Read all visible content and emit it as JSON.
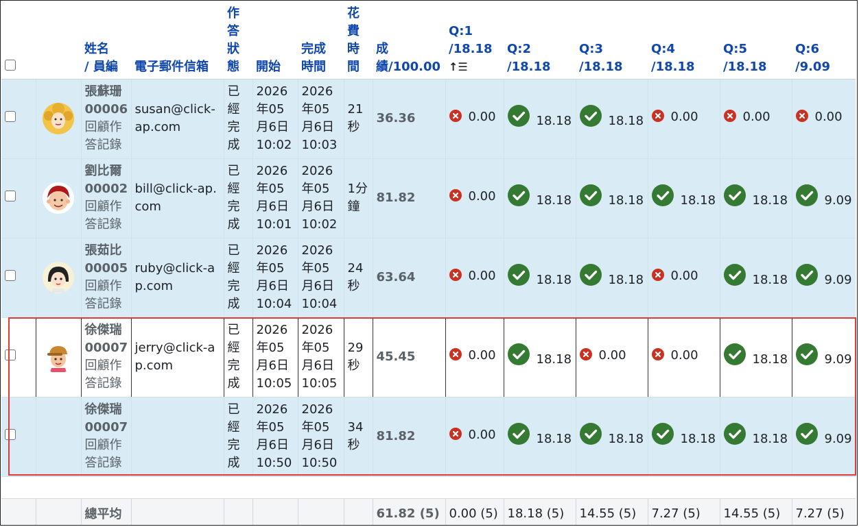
{
  "headers": {
    "name_line1": "姓名",
    "name_line2": "/ 員編",
    "email": "電子郵件信箱",
    "state": "作答狀態",
    "started": "開始",
    "completed": "完成時間",
    "duration": "花費時間",
    "grade": "成績/100.00",
    "questions": [
      {
        "line1": "Q:1",
        "line2": "/18.18",
        "sort": "↑☰"
      },
      {
        "line1": "Q:2",
        "line2": "/18.18"
      },
      {
        "line1": "Q:3",
        "line2": "/18.18"
      },
      {
        "line1": "Q:4",
        "line2": "/18.18"
      },
      {
        "line1": "Q:5",
        "line2": "/18.18"
      },
      {
        "line1": "Q:6",
        "line2": "/9.09"
      }
    ]
  },
  "rows": [
    {
      "name": "張蘇珊",
      "id": "00006",
      "review": "回顧作答記錄",
      "email": "susan@click-ap.com",
      "state": "已經完成",
      "started": "2026年05月6日10:02",
      "completed": "2026年05月6日10:03",
      "duration": "21秒",
      "grade": "36.36",
      "avatar": "curly-blonde",
      "q": [
        {
          "ok": false,
          "v": "0.00"
        },
        {
          "ok": true,
          "v": "18.18"
        },
        {
          "ok": true,
          "v": "18.18"
        },
        {
          "ok": false,
          "v": "0.00"
        },
        {
          "ok": false,
          "v": "0.00"
        },
        {
          "ok": false,
          "v": "0.00"
        }
      ]
    },
    {
      "name": "劉比爾",
      "id": "00002",
      "review": "回顧作答記錄",
      "email": "bill@click-ap.com",
      "state": "已經完成",
      "started": "2026年05月6日10:01",
      "completed": "2026年05月6日10:02",
      "duration": "1分鐘",
      "grade": "81.82",
      "avatar": "red-hair",
      "q": [
        {
          "ok": false,
          "v": "0.00"
        },
        {
          "ok": true,
          "v": "18.18"
        },
        {
          "ok": true,
          "v": "18.18"
        },
        {
          "ok": true,
          "v": "18.18"
        },
        {
          "ok": true,
          "v": "18.18"
        },
        {
          "ok": true,
          "v": "9.09"
        }
      ]
    },
    {
      "name": "張茹比",
      "id": "00005",
      "review": "回顧作答記錄",
      "email": "ruby@click-ap.com",
      "state": "已經完成",
      "started": "2026年05月6日10:04",
      "completed": "2026年05月6日10:04",
      "duration": "24秒",
      "grade": "63.64",
      "avatar": "dark-hair",
      "q": [
        {
          "ok": false,
          "v": "0.00"
        },
        {
          "ok": true,
          "v": "18.18"
        },
        {
          "ok": true,
          "v": "18.18"
        },
        {
          "ok": false,
          "v": "0.00"
        },
        {
          "ok": true,
          "v": "18.18"
        },
        {
          "ok": true,
          "v": "9.09"
        }
      ]
    },
    {
      "name": "徐傑瑞",
      "id": "00007",
      "review": "回顧作答記錄",
      "email": "jerry@click-ap.com",
      "state": "已經完成",
      "started": "2026年05月6日10:05",
      "completed": "2026年05月6日10:05",
      "duration": "29秒",
      "grade": "45.45",
      "avatar": "cap-boy",
      "q": [
        {
          "ok": false,
          "v": "0.00"
        },
        {
          "ok": true,
          "v": "18.18"
        },
        {
          "ok": false,
          "v": "0.00"
        },
        {
          "ok": false,
          "v": "0.00"
        },
        {
          "ok": true,
          "v": "18.18"
        },
        {
          "ok": true,
          "v": "9.09"
        }
      ]
    },
    {
      "name": "徐傑瑞",
      "id": "00007",
      "review": "回顧作答記錄",
      "email": "",
      "state": "已經完成",
      "started": "2026年05月6日10:50",
      "completed": "2026年05月6日10:50",
      "duration": "34秒",
      "grade": "81.82",
      "avatar": "",
      "q": [
        {
          "ok": false,
          "v": "0.00"
        },
        {
          "ok": true,
          "v": "18.18"
        },
        {
          "ok": true,
          "v": "18.18"
        },
        {
          "ok": true,
          "v": "18.18"
        },
        {
          "ok": true,
          "v": "18.18"
        },
        {
          "ok": true,
          "v": "9.09"
        }
      ]
    }
  ],
  "average": {
    "label": "總平均",
    "grade": "61.82 (5)",
    "q": [
      "0.00 (5)",
      "18.18 (5)",
      "14.55 (5)",
      "7.27 (5)",
      "14.55 (5)",
      "7.27 (5)"
    ]
  },
  "colors": {
    "ok": "#357a32",
    "fail": "#ca3120",
    "row_bg": "#d9ebf5",
    "highlight": "#e03a3a",
    "link": "#0f47ad"
  }
}
